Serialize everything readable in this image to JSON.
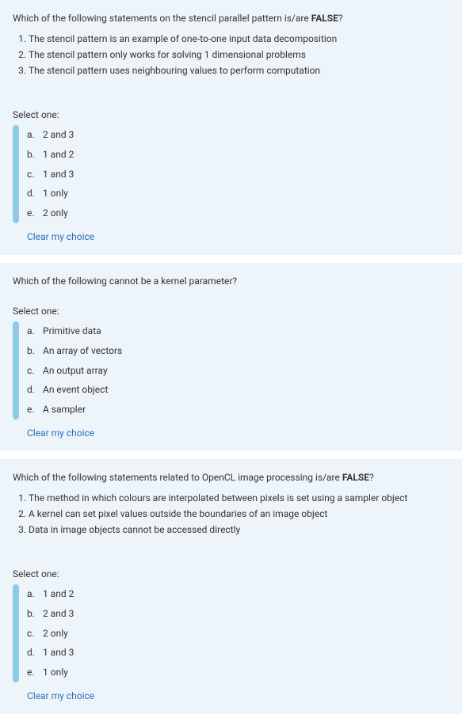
{
  "colors": {
    "background": "#eef5fa",
    "bar": "#8ecae6",
    "link": "#2a6ebb",
    "text": "#333333"
  },
  "questions": [
    {
      "prompt_pre": "Which of the following statements on the stencil parallel pattern is/are ",
      "prompt_bold": "FALSE",
      "prompt_post": "?",
      "statements": [
        "The stencil pattern is an example of one-to-one input data decomposition",
        "The stencil pattern only works for solving 1 dimensional problems",
        "The stencil pattern uses neighbouring values to perform computation"
      ],
      "select_label": "Select one:",
      "options": [
        {
          "letter": "a.",
          "text": "2 and 3"
        },
        {
          "letter": "b.",
          "text": "1 and 2"
        },
        {
          "letter": "c.",
          "text": "1 and 3"
        },
        {
          "letter": "d.",
          "text": "1 only"
        },
        {
          "letter": "e.",
          "text": "2 only"
        }
      ],
      "clear": "Clear my choice"
    },
    {
      "prompt_pre": "Which of the following cannot be a kernel parameter?",
      "prompt_bold": "",
      "prompt_post": "",
      "statements": [],
      "select_label": "Select one:",
      "options": [
        {
          "letter": "a.",
          "text": "Primitive data"
        },
        {
          "letter": "b.",
          "text": "An array of vectors"
        },
        {
          "letter": "c.",
          "text": "An output array"
        },
        {
          "letter": "d.",
          "text": "An event object"
        },
        {
          "letter": "e.",
          "text": "A sampler"
        }
      ],
      "clear": "Clear my choice"
    },
    {
      "prompt_pre": "Which of the following statements related to OpenCL image processing is/are ",
      "prompt_bold": "FALSE",
      "prompt_post": "?",
      "statements": [
        "The method in which colours are interpolated between pixels is set using a sampler object",
        "A kernel can set pixel values outside the boundaries of an image object",
        "Data in image objects cannot be accessed directly"
      ],
      "select_label": "Select one:",
      "options": [
        {
          "letter": "a.",
          "text": "1 and 2"
        },
        {
          "letter": "b.",
          "text": "2 and 3"
        },
        {
          "letter": "c.",
          "text": "2 only"
        },
        {
          "letter": "d.",
          "text": "1 and 3"
        },
        {
          "letter": "e.",
          "text": "1 only"
        }
      ],
      "clear": "Clear my choice"
    }
  ]
}
